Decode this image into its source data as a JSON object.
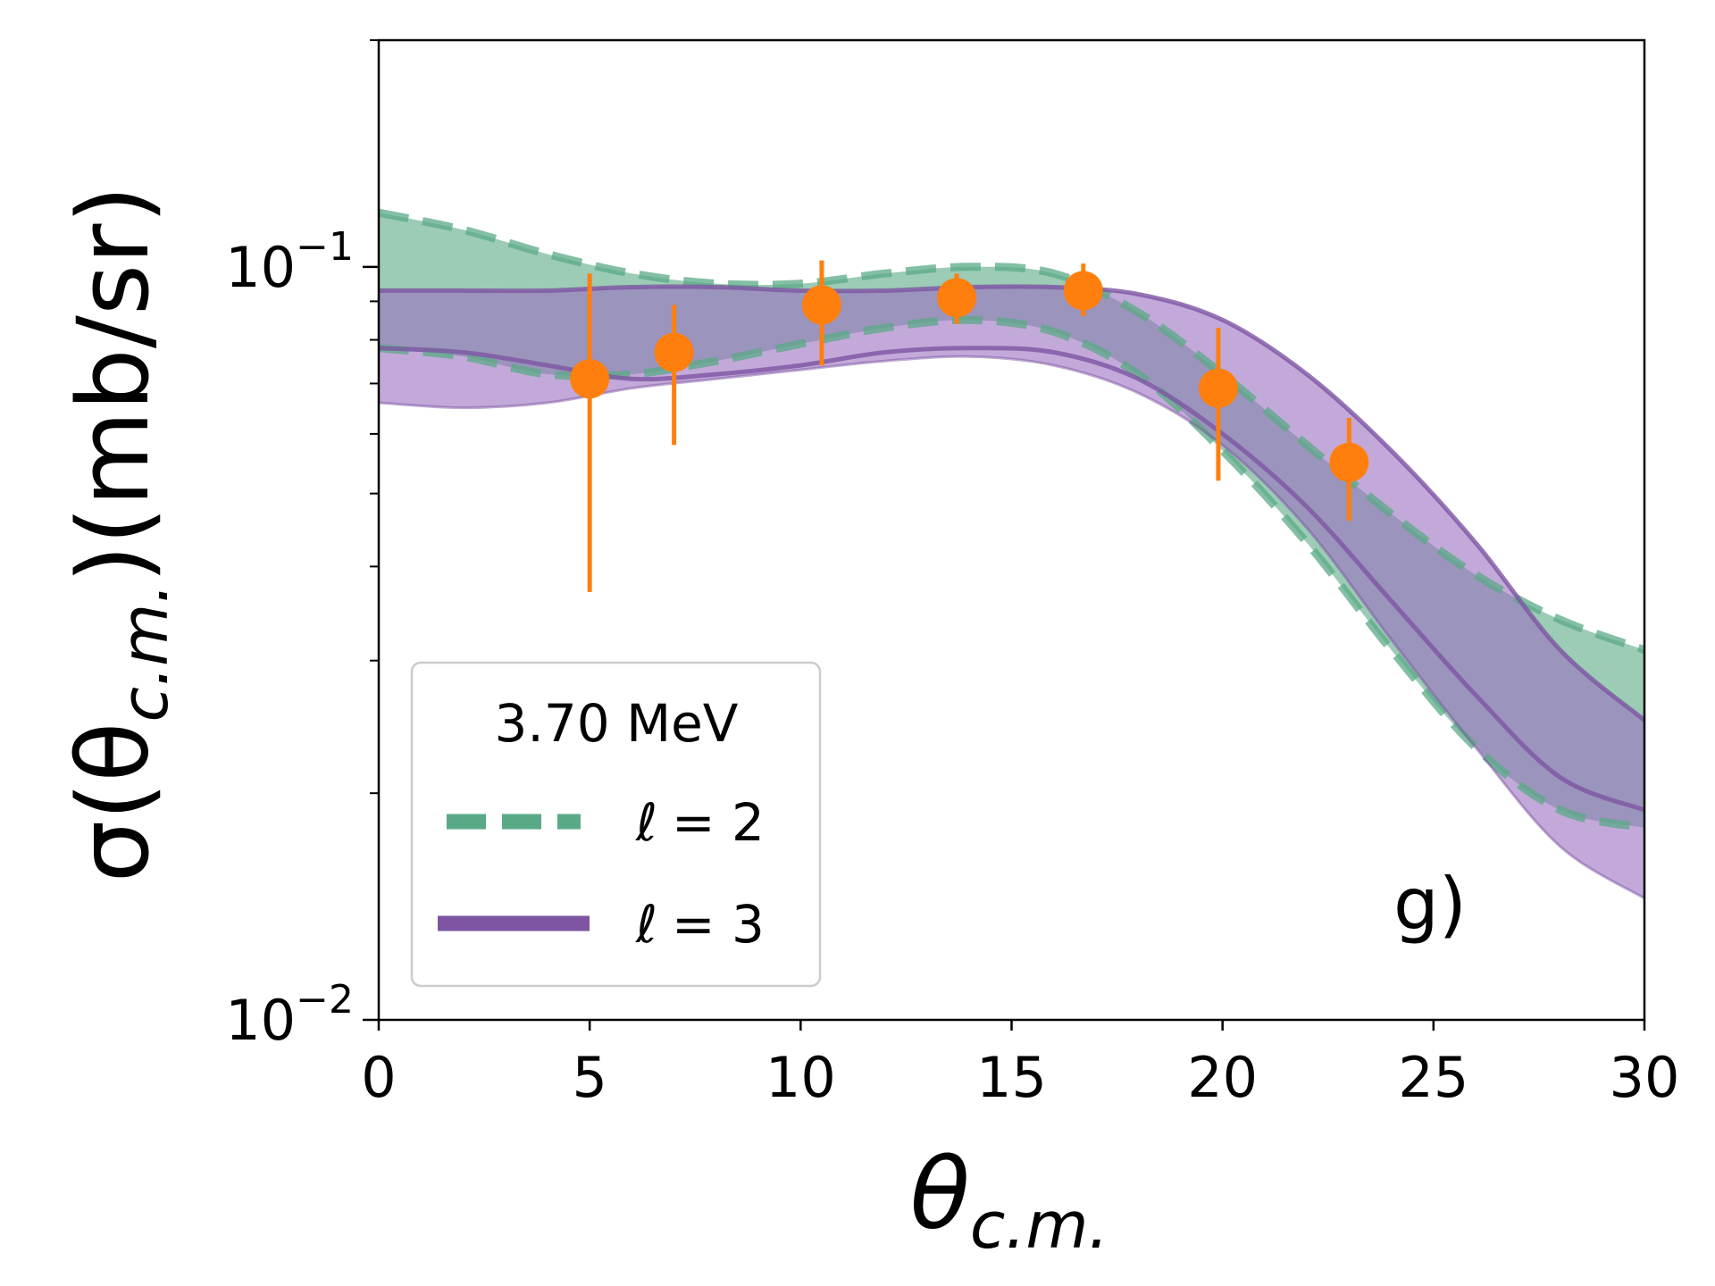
{
  "chart_data": {
    "type": "line",
    "panel_label": "g)",
    "xlabel": {
      "symbol": "θ",
      "subscript": "c.m."
    },
    "ylabel": {
      "prefix": "σ(θ",
      "subscript": "c.m.",
      "suffix": ")(mb/sr)"
    },
    "xlim": [
      0,
      30
    ],
    "ylim": [
      0.01,
      0.2
    ],
    "yscale": "log",
    "x_ticks": [
      {
        "value": 0,
        "label": "0"
      },
      {
        "value": 5,
        "label": "5"
      },
      {
        "value": 10,
        "label": "10"
      },
      {
        "value": 15,
        "label": "15"
      },
      {
        "value": 20,
        "label": "20"
      },
      {
        "value": 25,
        "label": "25"
      },
      {
        "value": 30,
        "label": "30"
      }
    ],
    "y_ticks": [
      {
        "value": 0.1,
        "base": "10",
        "exponent": "−1"
      },
      {
        "value": 0.01,
        "base": "10",
        "exponent": "−2"
      }
    ],
    "y_minor_ticks": [
      0.02,
      0.03,
      0.04,
      0.05,
      0.06,
      0.07,
      0.08,
      0.09,
      0.2
    ],
    "legend": {
      "title": "3.70 MeV",
      "placement": "lower-left"
    },
    "series": [
      {
        "name": "ℓ = 2",
        "label_symbol": "ℓ",
        "label_value": "= 2",
        "style": "dashed",
        "color": "#5aa986",
        "band_color": "#5aa986",
        "x": [
          0,
          2,
          4,
          6,
          8,
          10,
          12,
          14,
          16,
          18,
          20,
          22,
          24,
          26,
          28,
          30
        ],
        "upper": [
          0.118,
          0.112,
          0.104,
          0.098,
          0.095,
          0.095,
          0.098,
          0.1,
          0.098,
          0.087,
          0.072,
          0.058,
          0.047,
          0.039,
          0.034,
          0.031
        ],
        "lower": [
          0.078,
          0.076,
          0.072,
          0.072,
          0.075,
          0.079,
          0.083,
          0.085,
          0.082,
          0.072,
          0.057,
          0.043,
          0.031,
          0.023,
          0.019,
          0.018
        ]
      },
      {
        "name": "ℓ = 3",
        "label_symbol": "ℓ",
        "label_value": "= 3",
        "style": "solid",
        "color": "#7d55a3",
        "band_color": "#9b6fbf",
        "x": [
          0,
          2,
          4,
          6,
          8,
          10,
          12,
          14,
          16,
          18,
          20,
          22,
          24,
          26,
          28,
          30
        ],
        "upper": [
          0.093,
          0.093,
          0.093,
          0.094,
          0.094,
          0.093,
          0.093,
          0.094,
          0.094,
          0.092,
          0.085,
          0.072,
          0.057,
          0.043,
          0.031,
          0.025
        ],
        "lower": [
          0.078,
          0.077,
          0.074,
          0.071,
          0.072,
          0.074,
          0.077,
          0.078,
          0.077,
          0.071,
          0.06,
          0.048,
          0.036,
          0.027,
          0.021,
          0.019
        ],
        "lower_outer": [
          0.066,
          0.065,
          0.066,
          0.069,
          0.071,
          0.073,
          0.075,
          0.076,
          0.074,
          0.068,
          0.058,
          0.045,
          0.032,
          0.023,
          0.017,
          0.0145
        ]
      },
      {
        "name": "data",
        "style": "points",
        "color": "#ff7f0e",
        "x": [
          5.0,
          7.0,
          10.5,
          13.7,
          16.7,
          19.9,
          23.0
        ],
        "y": [
          0.071,
          0.077,
          0.089,
          0.091,
          0.093,
          0.069,
          0.055
        ],
        "y_low": [
          0.037,
          0.058,
          0.074,
          0.084,
          0.086,
          0.052,
          0.046
        ],
        "y_high": [
          0.098,
          0.089,
          0.102,
          0.098,
          0.101,
          0.083,
          0.063
        ]
      }
    ]
  }
}
